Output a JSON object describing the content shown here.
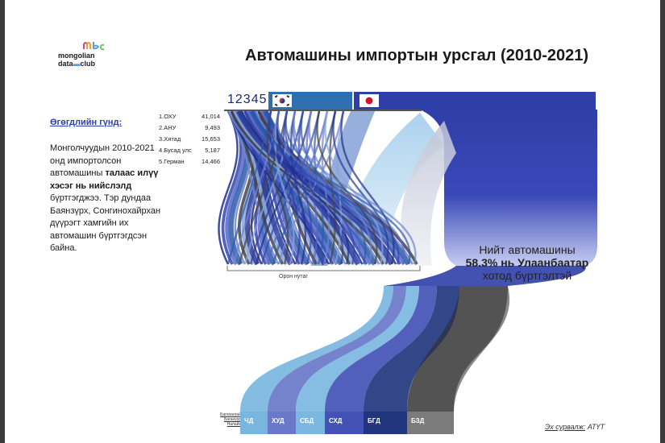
{
  "logo": {
    "line1": "mongolian",
    "line2": "data",
    "line3": "club"
  },
  "title": "Автомашины импортын урсгал (2010-2021)",
  "sidebar": {
    "heading": "Өгөгдлийн гүнд:",
    "paragraph": {
      "p1": "Монголчуудын 2010-2021 онд импортолсон автомашины ",
      "bold": "талаас илүү хэсэг нь нийслэлд",
      "p2": " бүртгэгджээ. Тэр дундаа Баянзүрх, Сонгинохайрхан дүүрэгт хамгийн их автомашин бүртгэгдсэн байна."
    }
  },
  "ranking": [
    {
      "label": "1.ОХУ",
      "value": "41,014"
    },
    {
      "label": "2.АНУ",
      "value": "9,493"
    },
    {
      "label": "3.Хятад",
      "value": "15,653"
    },
    {
      "label": "4.Бусад улс",
      "value": "5,187"
    },
    {
      "label": "5.Герман",
      "value": "14,466"
    }
  ],
  "numbers_strip": "12345",
  "flags": {
    "korea": "korea-flag-icon",
    "japan": "japan-flag-icon"
  },
  "region_axis_label": "Орон нутаг",
  "note": {
    "line1": "Нийт автомашины",
    "pct": "58.3% нь Улаанбаатар",
    "line3": "хотод бүртгэлтэй"
  },
  "districts_small": [
    "Багахангай",
    "Багануур",
    "Налайх"
  ],
  "districts": [
    {
      "label": "ЧД",
      "color": "#79b6df"
    },
    {
      "label": "ХУД",
      "color": "#6978c9"
    },
    {
      "label": "СБД",
      "color": "#7cb7e1"
    },
    {
      "label": "СХД",
      "color": "#4452b5"
    },
    {
      "label": "БГД",
      "color": "#22367e"
    },
    {
      "label": "БЗД",
      "color": "#7b7b7b"
    }
  ],
  "source": {
    "prefix": "Эх сурвалж:",
    "name": "АТҮТ"
  }
}
